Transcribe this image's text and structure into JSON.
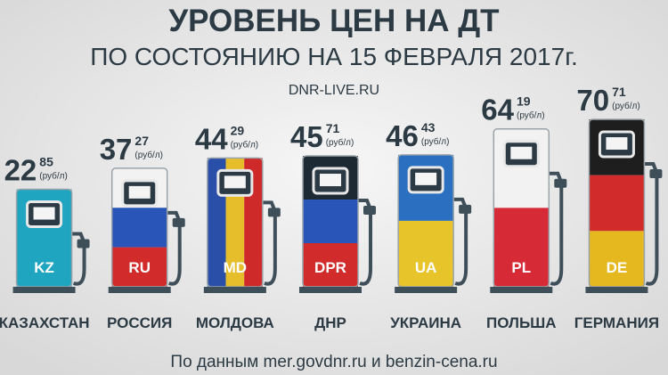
{
  "chart_data": {
    "type": "bar",
    "title": "УРОВЕНЬ ЦЕН НА ДТ",
    "subtitle": "ПО СОСТОЯНИЮ НА 15 ФЕВРАЛЯ 2017г.",
    "site": "DNR-LIVE.RU",
    "source": "По данным mer.govdnr.ru и benzin-cena.ru",
    "unit_label": "(руб/л)",
    "categories": [
      "КАЗАХСТАН",
      "РОССИЯ",
      "МОЛДОВА",
      "ДНР",
      "УКРАИНА",
      "ПОЛЬША",
      "ГЕРМАНИЯ"
    ],
    "codes": [
      "KZ",
      "RU",
      "MD",
      "DPR",
      "UA",
      "PL",
      "DE"
    ],
    "values": [
      22.85,
      37.27,
      44.29,
      45.71,
      46.43,
      64.19,
      70.71
    ],
    "value_labels": [
      [
        "22",
        "85"
      ],
      [
        "37",
        "27"
      ],
      [
        "44",
        "29"
      ],
      [
        "45",
        "71"
      ],
      [
        "46",
        "43"
      ],
      [
        "64",
        "19"
      ],
      [
        "70",
        "71"
      ]
    ],
    "colors": [
      [
        "#1fa5c0"
      ],
      [
        "#f2f2f2",
        "#2a55b8",
        "#d22b2b"
      ],
      [
        "#2a4fa8",
        "#e6bd2a",
        "#cf2a2a"
      ],
      [
        "#1e2a33",
        "#2a55b8",
        "#d22b2b"
      ],
      [
        "#2a6fc0",
        "#e6c42a"
      ],
      [
        "#f2f2f2",
        "#d62a36"
      ],
      [
        "#1e1e1e",
        "#d22b2b",
        "#e6b820"
      ]
    ],
    "stripe_direction": [
      "h",
      "h",
      "v",
      "h",
      "h",
      "h",
      "h"
    ]
  }
}
